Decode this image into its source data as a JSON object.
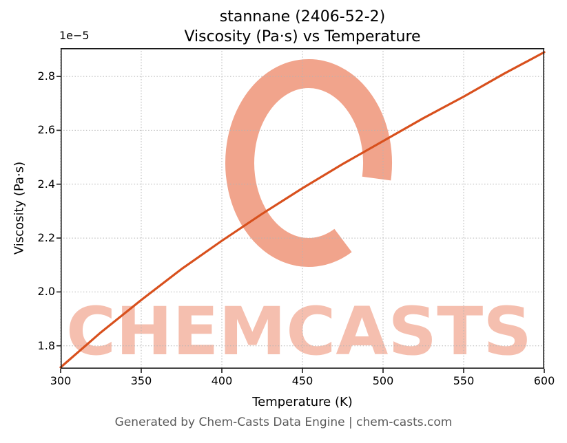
{
  "title": {
    "line1": "stannane (2406-52-2)",
    "line2": "Viscosity (Pa·s) vs Temperature"
  },
  "footer": "Generated by Chem-Casts Data Engine | chem-casts.com",
  "watermark": {
    "text": "CHEMCASTS",
    "logo": "chemcasts-c-swirl-logo"
  },
  "colors": {
    "line": "#d8501d",
    "watermark_ring": "#ee9478",
    "watermark_text": "#f3b09c",
    "grid": "#b3b3b3",
    "spine": "#1a1a1a",
    "footer": "#5a5a5a"
  },
  "chart_data": {
    "type": "line",
    "title": "stannane (2406-52-2) — Viscosity (Pa·s) vs Temperature",
    "xlabel": "Temperature (K)",
    "ylabel": "Viscosity (Pa·s)",
    "offset_text": "1e−5",
    "y_unit_note": "y values in units of 1e-5 Pa·s",
    "xlim": [
      300,
      600
    ],
    "ylim": [
      1.715,
      2.905
    ],
    "x": [
      300,
      325,
      350,
      375,
      400,
      425,
      450,
      475,
      500,
      525,
      550,
      575,
      600
    ],
    "y": [
      1.72,
      1.85,
      1.97,
      2.085,
      2.19,
      2.29,
      2.385,
      2.475,
      2.56,
      2.645,
      2.725,
      2.81,
      2.89
    ],
    "x_ticks": [
      300,
      350,
      400,
      450,
      500,
      550,
      600
    ],
    "x_tick_labels": [
      "300",
      "350",
      "400",
      "450",
      "500",
      "550",
      "600"
    ],
    "y_ticks": [
      1.8,
      2.0,
      2.2,
      2.4,
      2.6,
      2.8
    ],
    "y_tick_labels": [
      "1.8",
      "2.0",
      "2.2",
      "2.4",
      "2.6",
      "2.8"
    ],
    "grid": true,
    "grid_style": "dotted",
    "legend": "none",
    "series_name": "viscosity"
  }
}
